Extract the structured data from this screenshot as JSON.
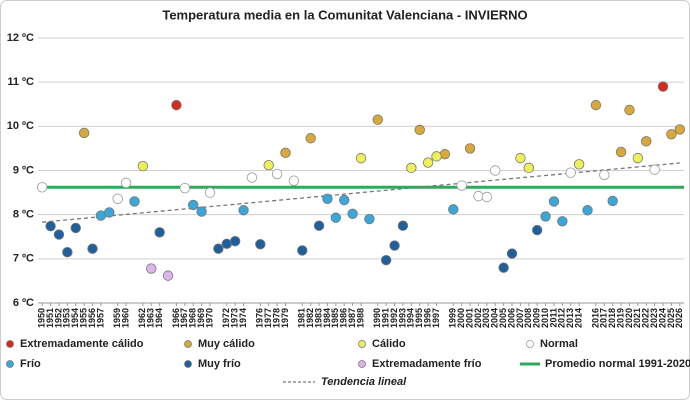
{
  "chart_data": {
    "type": "scatter",
    "title": "Temperatura media en la Comunitat Valenciana - INVIERNO",
    "xlim": [
      1949.5,
      2026.5
    ],
    "ylim": [
      6,
      12
    ],
    "yticks": [
      {
        "value": 6,
        "label": "6 ºC"
      },
      {
        "value": 7,
        "label": "7 ºC"
      },
      {
        "value": 8,
        "label": "8 ºC"
      },
      {
        "value": 9,
        "label": "9 ºC"
      },
      {
        "value": 10,
        "label": "10 ºC"
      },
      {
        "value": 11,
        "label": "11 ºC"
      },
      {
        "value": 12,
        "label": "12 ºC"
      }
    ],
    "xticks": [
      1950,
      1951,
      1952,
      1953,
      1954,
      1955,
      1956,
      1957,
      1959,
      1960,
      1962,
      1963,
      1964,
      1966,
      1967,
      1968,
      1969,
      1970,
      1972,
      1973,
      1974,
      1976,
      1977,
      1978,
      1979,
      1981,
      1982,
      1983,
      1984,
      1985,
      1986,
      1987,
      1988,
      1990,
      1991,
      1992,
      1993,
      1994,
      1995,
      1996,
      1997,
      1999,
      2000,
      2001,
      2002,
      2003,
      2004,
      2005,
      2006,
      2007,
      2008,
      2009,
      2010,
      2011,
      2012,
      2013,
      2014,
      2016,
      2017,
      2018,
      2019,
      2020,
      2021,
      2022,
      2023,
      2024,
      2025,
      2026
    ],
    "grid": true,
    "series": [
      {
        "name": "Extremadamente cálido",
        "color": "#d42a20",
        "x": [
          1966,
          2024
        ],
        "values": [
          10.48,
          10.9
        ]
      },
      {
        "name": "Muy cálido",
        "color": "#d9a83a",
        "x": [
          1955,
          1979,
          1982,
          1990,
          1995,
          1998,
          2001,
          2016,
          2019,
          2020,
          2022,
          2025,
          2026
        ],
        "values": [
          9.85,
          9.4,
          9.73,
          10.15,
          9.92,
          9.37,
          9.5,
          10.48,
          9.42,
          10.37,
          9.66,
          9.82,
          9.93
        ]
      },
      {
        "name": "Cálido",
        "color": "#eef05a",
        "x": [
          1962,
          1977,
          1988,
          1994,
          1996,
          1997,
          2007,
          2008,
          2014,
          2021
        ],
        "values": [
          9.1,
          9.12,
          9.28,
          9.06,
          9.18,
          9.32,
          9.28,
          9.06,
          9.14,
          9.28
        ]
      },
      {
        "name": "Normal",
        "color": "#ffffff",
        "x": [
          1950,
          1959,
          1960,
          1967,
          1970,
          1975,
          1978,
          1980,
          2000,
          2002,
          2003,
          2004,
          2013,
          2017,
          2023
        ],
        "values": [
          8.62,
          8.36,
          8.72,
          8.6,
          8.5,
          8.84,
          8.92,
          8.77,
          8.66,
          8.42,
          8.4,
          9.0,
          8.95,
          8.9,
          9.02
        ]
      },
      {
        "name": "Frío",
        "color": "#3aa6da",
        "x": [
          1957,
          1958,
          1961,
          1968,
          1969,
          1974,
          1984,
          1985,
          1986,
          1987,
          1989,
          1999,
          2010,
          2011,
          2012,
          2015,
          2018
        ],
        "values": [
          7.98,
          8.05,
          8.3,
          8.22,
          8.07,
          8.1,
          8.36,
          7.93,
          8.33,
          8.02,
          7.9,
          8.12,
          7.96,
          8.3,
          7.85,
          8.1,
          8.31
        ]
      },
      {
        "name": "Muy frío",
        "color": "#1f5f9c",
        "x": [
          1951,
          1952,
          1953,
          1954,
          1956,
          1964,
          1971,
          1972,
          1973,
          1976,
          1981,
          1983,
          1991,
          1992,
          1993,
          2005,
          2006,
          2009
        ],
        "values": [
          7.74,
          7.55,
          7.15,
          7.7,
          7.23,
          7.6,
          7.23,
          7.34,
          7.4,
          7.33,
          7.19,
          7.75,
          6.97,
          7.3,
          7.75,
          6.8,
          7.12,
          7.65
        ]
      },
      {
        "name": "Extremadamente frío",
        "color": "#dcb4ea",
        "x": [
          1963,
          1965
        ],
        "values": [
          6.78,
          6.62
        ]
      }
    ],
    "reference": {
      "name": "Promedio normal 1991-2020",
      "value": 8.62,
      "color": "#2eaa5c"
    },
    "trend": {
      "name": "Tendencia lineal",
      "x": [
        1950,
        2026
      ],
      "values": [
        7.83,
        9.17
      ],
      "color": "#777777"
    }
  }
}
